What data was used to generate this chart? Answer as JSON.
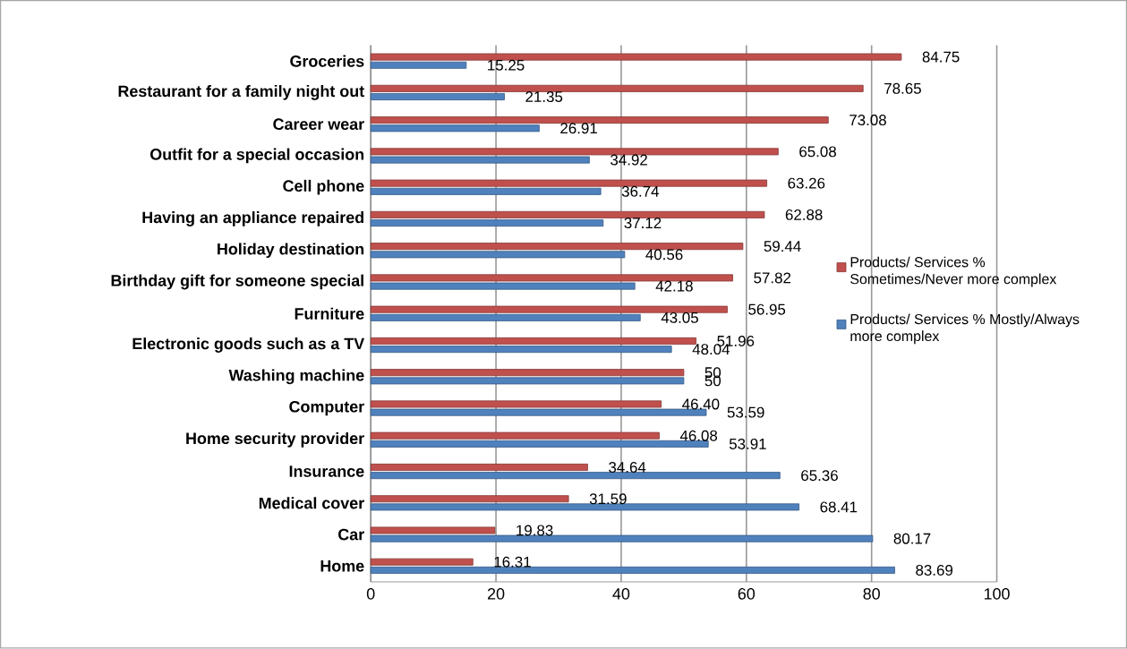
{
  "chart_data": {
    "type": "bar",
    "orientation": "horizontal",
    "categories": [
      "Groceries",
      "Restaurant for a family night out",
      "Career wear",
      "Outfit for a special occasion",
      "Cell phone",
      "Having an appliance repaired",
      "Holiday destination",
      "Birthday gift for someone special",
      "Furniture",
      "Electronic goods such as a TV",
      "Washing machine",
      "Computer",
      "Home security provider",
      "Insurance",
      "Medical cover",
      "Car",
      "Home"
    ],
    "series": [
      {
        "name": "Products/ Services % Sometimes/Never more complex",
        "color": "#c0504d",
        "values": [
          84.75,
          78.65,
          73.08,
          65.08,
          63.26,
          62.88,
          59.44,
          57.82,
          56.95,
          51.96,
          50,
          46.4,
          46.08,
          34.64,
          31.59,
          19.83,
          16.31
        ],
        "value_labels": [
          "84.75",
          "78.65",
          "73.08",
          "65.08",
          "63.26",
          "62.88",
          "59.44",
          "57.82",
          "56.95",
          "51.96",
          "50",
          "46.40",
          "46.08",
          "34.64",
          "31.59",
          "19.83",
          "16.31"
        ]
      },
      {
        "name": "Products/ Services % Mostly/Always more complex",
        "color": "#4f81bd",
        "values": [
          15.25,
          21.35,
          26.91,
          34.92,
          36.74,
          37.12,
          40.56,
          42.18,
          43.05,
          48.04,
          50,
          53.59,
          53.91,
          65.36,
          68.41,
          80.17,
          83.69
        ],
        "value_labels": [
          "15.25",
          "21.35",
          "26.91",
          "34.92",
          "36.74",
          "37.12",
          "40.56",
          "42.18",
          "43.05",
          "48.04",
          "50",
          "53.59",
          "53.91",
          "65.36",
          "68.41",
          "80.17",
          "83.69"
        ]
      }
    ],
    "xlim": [
      0,
      100
    ],
    "xticks": [
      0,
      20,
      40,
      60,
      80,
      100
    ],
    "grid": "x",
    "legend": "right"
  }
}
